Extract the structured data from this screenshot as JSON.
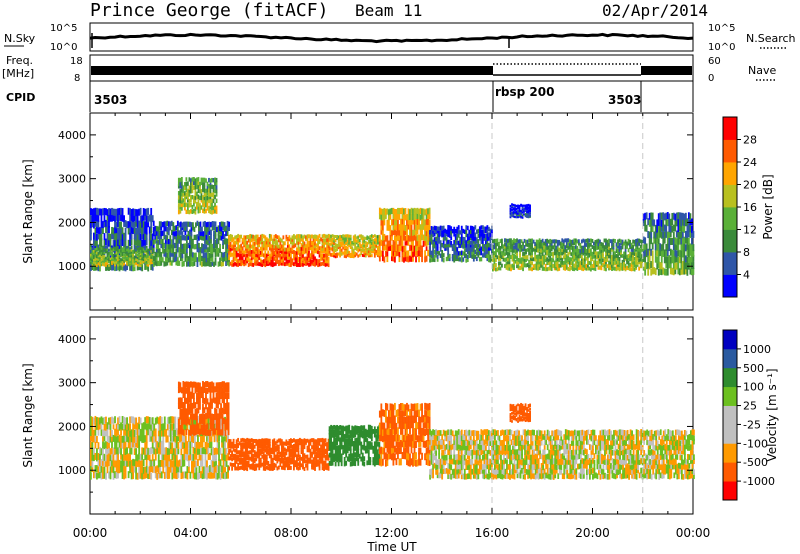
{
  "header": {
    "station": "Prince George (fitACF)",
    "beam": "Beam 11",
    "date": "02/Apr/2014"
  },
  "noise_panel": {
    "left_label": "N.Sky",
    "right_label": "N.Search",
    "y_ticks": [
      "10^5",
      "10^0"
    ]
  },
  "freq_panel": {
    "left_label_line1": "Freq.",
    "left_label_line2": "[MHz]",
    "right_label": "Nave",
    "left_ticks": [
      "18",
      "8"
    ],
    "right_ticks": [
      "60",
      "0"
    ]
  },
  "cpid_panel": {
    "label": "CPID",
    "modes": [
      {
        "text": "3503",
        "start_h": 0
      },
      {
        "text": "rbsp 200",
        "start_h": 16
      },
      {
        "text": "3503",
        "start_h": 22
      }
    ]
  },
  "x_axis": {
    "label": "Time UT",
    "tick_labels": [
      "00:00",
      "04:00",
      "08:00",
      "12:00",
      "16:00",
      "20:00",
      "00:00"
    ],
    "range_h": [
      0,
      24
    ]
  },
  "colors": {
    "power": [
      "#0000ff",
      "#2f56a8",
      "#3a8a3a",
      "#5ab038",
      "#b8c020",
      "#ffa500",
      "#ff5a00",
      "#ff0000"
    ],
    "velocity": [
      "#ff0000",
      "#ff5a00",
      "#ff9a00",
      "#c0c0c0",
      "#c0c0c0",
      "#6cc020",
      "#2e8c2e",
      "#2a5aa0",
      "#0000c0"
    ]
  },
  "chart_data": [
    {
      "type": "heatmap",
      "title": "Power",
      "xlabel": "Time UT",
      "ylabel": "Slant Range [km]",
      "ylim": [
        0,
        4500
      ],
      "yticks": [
        1000,
        2000,
        3000,
        4000
      ],
      "colorbar": {
        "label": "Power [dB]",
        "ticks": [
          "4",
          "8",
          "12",
          "16",
          "20",
          "24",
          "28"
        ],
        "range": [
          0,
          32
        ]
      },
      "regions": [
        {
          "t0": 0,
          "t1": 2.5,
          "r0": 900,
          "r1": 2300,
          "dB": 10
        },
        {
          "t0": 0,
          "t1": 2.5,
          "r0": 1000,
          "r1": 1400,
          "dB": 18
        },
        {
          "t0": 2.5,
          "t1": 5.5,
          "r0": 1000,
          "r1": 2000,
          "dB": 12
        },
        {
          "t0": 3.5,
          "t1": 5.0,
          "r0": 2200,
          "r1": 3000,
          "dB": 18
        },
        {
          "t0": 5.5,
          "t1": 9.5,
          "r0": 1000,
          "r1": 1700,
          "dB": 28
        },
        {
          "t0": 9.5,
          "t1": 11.5,
          "r0": 1200,
          "r1": 1700,
          "dB": 24
        },
        {
          "t0": 11.5,
          "t1": 13.5,
          "r0": 1100,
          "r1": 2300,
          "dB": 26
        },
        {
          "t0": 13.5,
          "t1": 16.0,
          "r0": 1100,
          "r1": 1900,
          "dB": 10
        },
        {
          "t0": 16.0,
          "t1": 22.0,
          "r0": 900,
          "r1": 1600,
          "dB": 17
        },
        {
          "t0": 16.7,
          "t1": 17.5,
          "r0": 2100,
          "r1": 2400,
          "dB": 6
        },
        {
          "t0": 22.0,
          "t1": 24.0,
          "r0": 800,
          "r1": 2200,
          "dB": 14
        }
      ]
    },
    {
      "type": "heatmap",
      "title": "Velocity",
      "xlabel": "Time UT",
      "ylabel": "Slant Range [km]",
      "ylim": [
        0,
        4500
      ],
      "yticks": [
        1000,
        2000,
        3000,
        4000
      ],
      "colorbar": {
        "label": "Velocity [m s⁻¹]",
        "ticks": [
          "1000",
          "500",
          "100",
          "25",
          "-25",
          "-100",
          "-500",
          "-1000"
        ],
        "range": [
          -1200,
          1200
        ]
      },
      "regions": [
        {
          "t0": 0,
          "t1": 5.5,
          "r0": 800,
          "r1": 2200,
          "v": 0
        },
        {
          "t0": 3.5,
          "t1": 5.5,
          "r0": 1800,
          "r1": 3000,
          "v": -300
        },
        {
          "t0": 5.5,
          "t1": 9.5,
          "r0": 1000,
          "r1": 1700,
          "v": -400
        },
        {
          "t0": 9.5,
          "t1": 11.5,
          "r0": 1100,
          "r1": 2000,
          "v": 200
        },
        {
          "t0": 11.5,
          "t1": 13.5,
          "r0": 1100,
          "r1": 2500,
          "v": -150
        },
        {
          "t0": 13.5,
          "t1": 24.0,
          "r0": 800,
          "r1": 1900,
          "v": 0
        },
        {
          "t0": 16.7,
          "t1": 17.5,
          "r0": 2100,
          "r1": 2500,
          "v": -400
        }
      ]
    }
  ]
}
